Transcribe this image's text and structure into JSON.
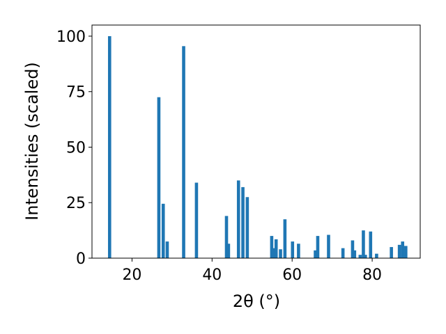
{
  "chart_data": {
    "type": "bar",
    "xlabel": "2θ (°)",
    "ylabel": "Intensities (scaled)",
    "xlim": [
      10,
      92
    ],
    "ylim": [
      0,
      105
    ],
    "xticks": [
      20,
      40,
      60,
      80
    ],
    "yticks": [
      0,
      25,
      50,
      75,
      100
    ],
    "bar_width": 0.8,
    "bar_color": "#1f77b4",
    "grid": false,
    "x": [
      14.4,
      26.7,
      27.8,
      28.8,
      32.9,
      36.1,
      43.6,
      44.1,
      46.6,
      47.7,
      48.8,
      54.9,
      55.4,
      56.0,
      57.1,
      58.2,
      60.1,
      61.6,
      65.8,
      66.4,
      69.1,
      72.7,
      75.1,
      75.6,
      77.0,
      77.8,
      78.3,
      79.6,
      81.1,
      84.8,
      86.8,
      87.6,
      88.4
    ],
    "values": [
      100,
      72.5,
      24.5,
      7.5,
      95.5,
      34,
      19,
      6.5,
      35,
      32,
      27.5,
      10,
      4.5,
      8.5,
      4,
      17.5,
      7.5,
      6.5,
      3.5,
      10,
      10.5,
      4.5,
      8,
      3.5,
      1.5,
      12.5,
      1.5,
      12,
      2,
      5,
      6,
      7.5,
      5.5
    ]
  }
}
